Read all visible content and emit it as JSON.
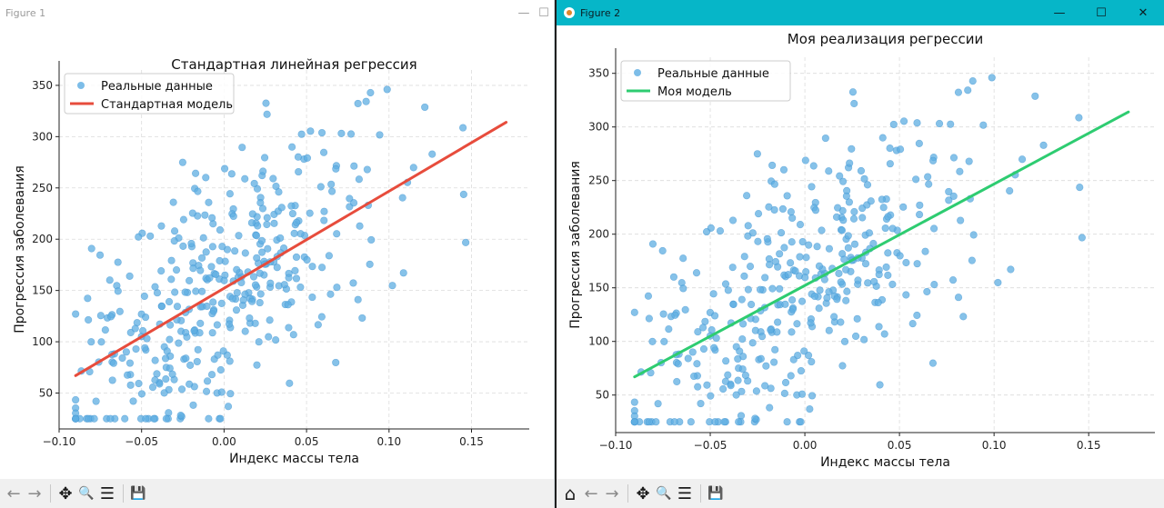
{
  "windows": [
    {
      "title": "Figure 1",
      "controls": {
        "minimize": "—",
        "maximize": "☐",
        "close": "✕"
      },
      "toolbar": [
        {
          "icon": "back-icon",
          "glyph": "←"
        },
        {
          "icon": "forward-icon",
          "glyph": "→"
        },
        {
          "icon": "pan-icon",
          "glyph": "✥"
        },
        {
          "icon": "zoom-icon",
          "glyph": "🔍"
        },
        {
          "icon": "configure-subplots-icon",
          "glyph": "☰"
        },
        {
          "icon": "save-icon",
          "glyph": "💾"
        }
      ]
    },
    {
      "title": "Figure 2",
      "controls": {
        "minimize": "—",
        "maximize": "☐",
        "close": "✕"
      },
      "toolbar": [
        {
          "icon": "home-icon",
          "glyph": "⌂"
        },
        {
          "icon": "back-icon",
          "glyph": "←"
        },
        {
          "icon": "forward-icon",
          "glyph": "→"
        },
        {
          "icon": "pan-icon",
          "glyph": "✥"
        },
        {
          "icon": "zoom-icon",
          "glyph": "🔍"
        },
        {
          "icon": "configure-subplots-icon",
          "glyph": "☰"
        },
        {
          "icon": "save-icon",
          "glyph": "💾"
        }
      ]
    }
  ],
  "chart_data": [
    {
      "type": "scatter",
      "title": "Стандартная линейная регрессия",
      "xlabel": "Индекс массы тела",
      "ylabel": "Прогрессия заболевания",
      "xlim": [
        -0.1,
        0.185
      ],
      "ylim": [
        15,
        365
      ],
      "xticks": [
        -0.1,
        -0.05,
        0.0,
        0.05,
        0.1,
        0.15
      ],
      "xtick_labels": [
        "−0.10",
        "−0.05",
        "0.00",
        "0.05",
        "0.10",
        "0.15"
      ],
      "yticks": [
        50,
        100,
        150,
        200,
        250,
        300,
        350
      ],
      "ytick_labels": [
        "50",
        "100",
        "150",
        "200",
        "250",
        "300",
        "350"
      ],
      "grid": true,
      "legend_position": "upper-left",
      "series": [
        {
          "name": "Реальные данные",
          "kind": "scatter",
          "color": "#5dade2",
          "seed": 7,
          "n": 380,
          "trend": [
            0,
            949,
            152
          ],
          "noise": 62
        },
        {
          "name": "Стандартная модель",
          "kind": "line",
          "color": "#e74c3c",
          "x": [
            -0.09,
            0.171
          ],
          "y": [
            67,
            314
          ]
        }
      ]
    },
    {
      "type": "scatter",
      "title": "Моя реализация регрессии",
      "xlabel": "Индекс массы тела",
      "ylabel": "Прогрессия заболевания",
      "xlim": [
        -0.1,
        0.185
      ],
      "ylim": [
        15,
        365
      ],
      "xticks": [
        -0.1,
        -0.05,
        0.0,
        0.05,
        0.1,
        0.15
      ],
      "xtick_labels": [
        "−0.10",
        "−0.05",
        "0.00",
        "0.05",
        "0.10",
        "0.15"
      ],
      "yticks": [
        50,
        100,
        150,
        200,
        250,
        300,
        350
      ],
      "ytick_labels": [
        "50",
        "100",
        "150",
        "200",
        "250",
        "300",
        "350"
      ],
      "grid": true,
      "legend_position": "upper-left",
      "series": [
        {
          "name": "Реальные данные",
          "kind": "scatter",
          "color": "#5dade2",
          "seed": 7,
          "n": 380,
          "trend": [
            0,
            949,
            152
          ],
          "noise": 62
        },
        {
          "name": "Моя модель",
          "kind": "line",
          "color": "#2ecc71",
          "x": [
            -0.09,
            0.171
          ],
          "y": [
            67,
            314
          ]
        }
      ]
    }
  ]
}
